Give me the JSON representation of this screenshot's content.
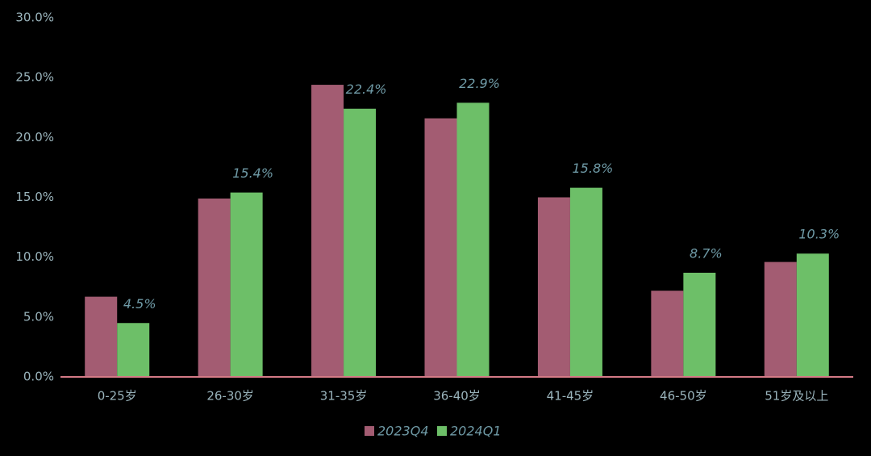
{
  "chart_data": {
    "type": "bar",
    "categories": [
      "0-25岁",
      "26-30岁",
      "31-35岁",
      "36-40岁",
      "41-45岁",
      "46-50岁",
      "51岁及以上"
    ],
    "series": [
      {
        "name": "2023Q4",
        "color": "#a35c72",
        "values": [
          6.7,
          14.9,
          24.4,
          21.6,
          15.0,
          7.2,
          9.6
        ]
      },
      {
        "name": "2024Q1",
        "color": "#6dbf68",
        "values": [
          4.5,
          15.4,
          22.4,
          22.9,
          15.8,
          8.7,
          10.3
        ],
        "value_labels": [
          "4.5%",
          "15.4%",
          "22.4%",
          "22.9%",
          "15.8%",
          "8.7%",
          "10.3%"
        ]
      }
    ],
    "ylim": [
      0,
      30
    ],
    "yticks": [
      {
        "value": 0,
        "label": "0.0%"
      },
      {
        "value": 5,
        "label": "5.0%"
      },
      {
        "value": 10,
        "label": "10.0%"
      },
      {
        "value": 15,
        "label": "15.0%"
      },
      {
        "value": 20,
        "label": "20.0%"
      },
      {
        "value": 25,
        "label": "25.0%"
      },
      {
        "value": 30,
        "label": "30.0%"
      }
    ],
    "grid": false,
    "legend": "bottom"
  }
}
